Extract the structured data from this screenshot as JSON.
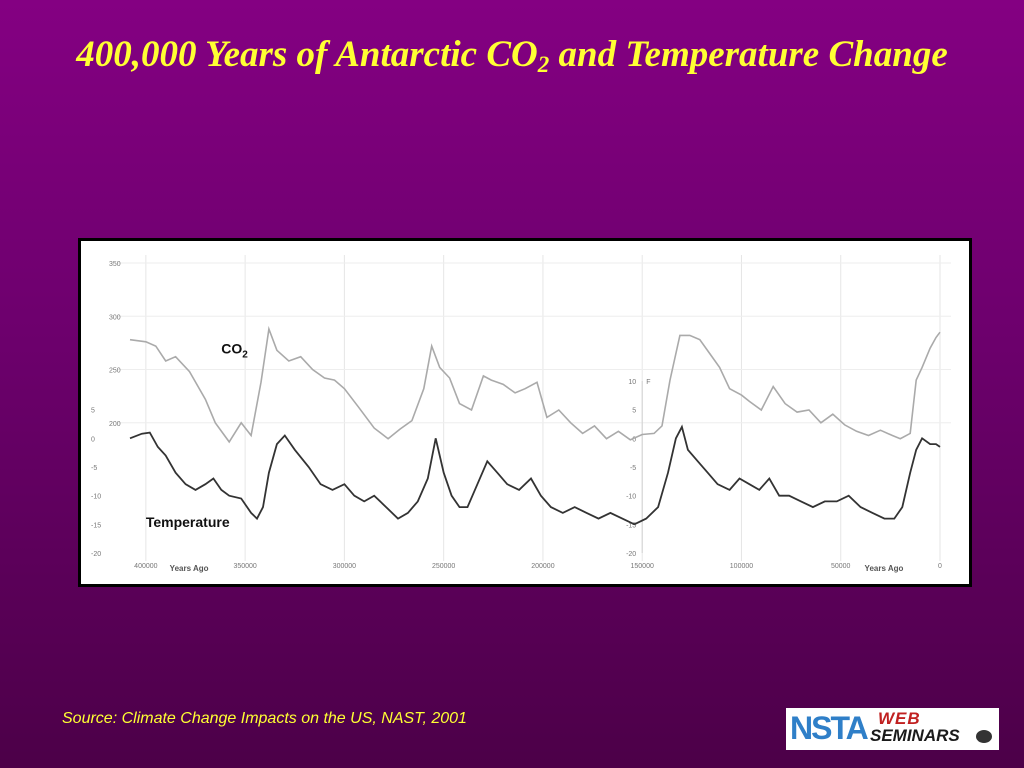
{
  "slide": {
    "title_part1": "400,000 Years of Antarctic CO",
    "title_sub": "2",
    "title_part2": " and Temperature Change",
    "source": "Source: Climate Change Impacts on the US, NAST, 2001",
    "logo": {
      "nsta": "NSTA",
      "web": "WEB",
      "seminars": "SEMINARS"
    }
  },
  "colors": {
    "background": "#7a007a",
    "title": "#ffff33",
    "co2_line": "#aaaaaa",
    "temperature_line": "#333333"
  },
  "chart_data": {
    "type": "line",
    "title": "",
    "x_axis": {
      "label": "Years Ago",
      "range": [
        410000,
        0
      ],
      "ticks": [
        400000,
        350000,
        300000,
        250000,
        200000,
        150000,
        100000,
        50000,
        0
      ],
      "tick_labels": [
        "400000",
        "350000",
        "300000",
        "250000",
        "200000",
        "150000",
        "100000",
        "50000",
        "0"
      ]
    },
    "y_axis_co2": {
      "range": [
        150,
        350
      ],
      "ticks": [
        350,
        300,
        250,
        200
      ],
      "tick_labels": [
        "350",
        "300",
        "250",
        "200"
      ]
    },
    "y_axis_temp_left": {
      "range": [
        -20,
        10
      ],
      "ticks": [
        5,
        0,
        -5,
        -10,
        -15,
        -20
      ],
      "tick_labels": [
        "5",
        "0",
        "-5",
        "-10",
        "-15",
        "-20"
      ]
    },
    "y_axis_temp_mid": {
      "unit": "F",
      "ticks": [
        10,
        5,
        0,
        -5,
        -10,
        -15,
        -20
      ],
      "tick_labels": [
        "10",
        "5",
        "0",
        "-5",
        "-10",
        "-15",
        "-20"
      ]
    },
    "series": [
      {
        "name": "CO2",
        "label_main": "CO",
        "label_sub": "2",
        "points": [
          [
            408000,
            278
          ],
          [
            400000,
            276
          ],
          [
            395000,
            272
          ],
          [
            390000,
            258
          ],
          [
            385000,
            262
          ],
          [
            378000,
            248
          ],
          [
            370000,
            222
          ],
          [
            365000,
            200
          ],
          [
            358000,
            182
          ],
          [
            352000,
            200
          ],
          [
            347000,
            188
          ],
          [
            342000,
            238
          ],
          [
            338000,
            288
          ],
          [
            334000,
            268
          ],
          [
            328000,
            258
          ],
          [
            322000,
            262
          ],
          [
            316000,
            250
          ],
          [
            310000,
            242
          ],
          [
            305000,
            240
          ],
          [
            300000,
            232
          ],
          [
            293000,
            215
          ],
          [
            285000,
            195
          ],
          [
            278000,
            185
          ],
          [
            272000,
            194
          ],
          [
            266000,
            202
          ],
          [
            260000,
            232
          ],
          [
            256000,
            272
          ],
          [
            252000,
            252
          ],
          [
            247000,
            242
          ],
          [
            242000,
            218
          ],
          [
            236000,
            212
          ],
          [
            230000,
            244
          ],
          [
            226000,
            240
          ],
          [
            220000,
            236
          ],
          [
            214000,
            228
          ],
          [
            209000,
            232
          ],
          [
            203000,
            238
          ],
          [
            198000,
            205
          ],
          [
            192000,
            212
          ],
          [
            186000,
            200
          ],
          [
            180000,
            190
          ],
          [
            174000,
            197
          ],
          [
            168000,
            185
          ],
          [
            162000,
            192
          ],
          [
            156000,
            184
          ],
          [
            150000,
            189
          ],
          [
            144000,
            190
          ],
          [
            140000,
            197
          ],
          [
            136000,
            240
          ],
          [
            131000,
            282
          ],
          [
            126000,
            282
          ],
          [
            121000,
            278
          ],
          [
            116000,
            265
          ],
          [
            111000,
            252
          ],
          [
            106000,
            232
          ],
          [
            100000,
            226
          ],
          [
            96000,
            220
          ],
          [
            90000,
            212
          ],
          [
            84000,
            234
          ],
          [
            78000,
            218
          ],
          [
            72000,
            210
          ],
          [
            66000,
            212
          ],
          [
            60000,
            200
          ],
          [
            54000,
            208
          ],
          [
            48000,
            198
          ],
          [
            42000,
            192
          ],
          [
            36000,
            188
          ],
          [
            30000,
            193
          ],
          [
            24000,
            188
          ],
          [
            20000,
            185
          ],
          [
            15000,
            190
          ],
          [
            12000,
            240
          ],
          [
            9000,
            252
          ],
          [
            5000,
            270
          ],
          [
            2000,
            280
          ],
          [
            0,
            285
          ]
        ]
      },
      {
        "name": "Temperature",
        "points": [
          [
            408000,
            0
          ],
          [
            402000,
            0.8
          ],
          [
            398000,
            1
          ],
          [
            394000,
            -1.5
          ],
          [
            390000,
            -3
          ],
          [
            385000,
            -6
          ],
          [
            380000,
            -8
          ],
          [
            375000,
            -9
          ],
          [
            370000,
            -8
          ],
          [
            366000,
            -7
          ],
          [
            362000,
            -9
          ],
          [
            358000,
            -10
          ],
          [
            352000,
            -10.5
          ],
          [
            347000,
            -13
          ],
          [
            344000,
            -14
          ],
          [
            341000,
            -12
          ],
          [
            338000,
            -6
          ],
          [
            334000,
            -1
          ],
          [
            330000,
            0.5
          ],
          [
            325000,
            -2
          ],
          [
            318000,
            -5
          ],
          [
            312000,
            -8
          ],
          [
            306000,
            -9
          ],
          [
            300000,
            -8
          ],
          [
            295000,
            -10
          ],
          [
            290000,
            -11
          ],
          [
            285000,
            -10
          ],
          [
            279000,
            -12
          ],
          [
            273000,
            -14
          ],
          [
            268000,
            -13
          ],
          [
            263000,
            -11
          ],
          [
            258000,
            -7
          ],
          [
            254000,
            0
          ],
          [
            250000,
            -6
          ],
          [
            246000,
            -10
          ],
          [
            242000,
            -12
          ],
          [
            238000,
            -12
          ],
          [
            233000,
            -8
          ],
          [
            228000,
            -4
          ],
          [
            223000,
            -6
          ],
          [
            218000,
            -8
          ],
          [
            212000,
            -9
          ],
          [
            206000,
            -7
          ],
          [
            201000,
            -10
          ],
          [
            196000,
            -12
          ],
          [
            190000,
            -13
          ],
          [
            184000,
            -12
          ],
          [
            178000,
            -13
          ],
          [
            172000,
            -14
          ],
          [
            166000,
            -13
          ],
          [
            160000,
            -14
          ],
          [
            154000,
            -15
          ],
          [
            148000,
            -14
          ],
          [
            142000,
            -12
          ],
          [
            137000,
            -6
          ],
          [
            133000,
            0
          ],
          [
            130000,
            2
          ],
          [
            127000,
            -2
          ],
          [
            122000,
            -4
          ],
          [
            117000,
            -6
          ],
          [
            112000,
            -8
          ],
          [
            106000,
            -9
          ],
          [
            101000,
            -7
          ],
          [
            96000,
            -8
          ],
          [
            91000,
            -9
          ],
          [
            86000,
            -7
          ],
          [
            81000,
            -10
          ],
          [
            76000,
            -10
          ],
          [
            70000,
            -11
          ],
          [
            64000,
            -12
          ],
          [
            58000,
            -11
          ],
          [
            52000,
            -11
          ],
          [
            46000,
            -10
          ],
          [
            40000,
            -12
          ],
          [
            34000,
            -13
          ],
          [
            28000,
            -14
          ],
          [
            23000,
            -14
          ],
          [
            19000,
            -12
          ],
          [
            15000,
            -6
          ],
          [
            12000,
            -2
          ],
          [
            9000,
            0
          ],
          [
            5000,
            -1
          ],
          [
            2000,
            -1
          ],
          [
            0,
            -1.5
          ]
        ]
      }
    ],
    "grid": true
  }
}
